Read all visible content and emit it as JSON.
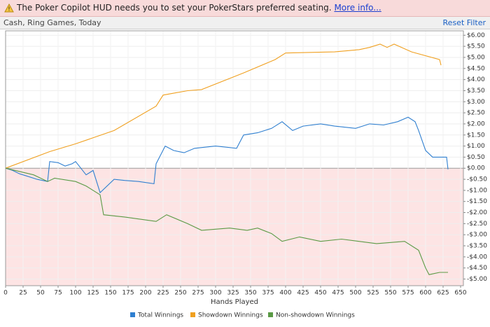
{
  "banner": {
    "text": "The Poker Copilot HUD needs you to set your PokerStars preferred seating.",
    "link": "More info..."
  },
  "toolbar": {
    "filter": "Cash, Ring Games, Today",
    "reset": "Reset Filter"
  },
  "chart_data": {
    "type": "line",
    "xlabel": "Hands Played",
    "xlim": [
      0,
      654
    ],
    "xticks": [
      0,
      25,
      50,
      75,
      100,
      125,
      150,
      175,
      200,
      225,
      250,
      275,
      300,
      325,
      350,
      375,
      400,
      425,
      450,
      475,
      500,
      525,
      550,
      575,
      600,
      625,
      650
    ],
    "ylim": [
      -5.3,
      6.2
    ],
    "yticks": [
      {
        "value": 6,
        "label": "$6.00"
      },
      {
        "value": 5.5,
        "label": "$5.50"
      },
      {
        "value": 5,
        "label": "$5.00"
      },
      {
        "value": 4.5,
        "label": "$4.50"
      },
      {
        "value": 4,
        "label": "$4.00"
      },
      {
        "value": 3.5,
        "label": "$3.50"
      },
      {
        "value": 3,
        "label": "$3.00"
      },
      {
        "value": 2.5,
        "label": "$2.50"
      },
      {
        "value": 2,
        "label": "$2.00"
      },
      {
        "value": 1.5,
        "label": "$1.50"
      },
      {
        "value": 1,
        "label": "$1.00"
      },
      {
        "value": 0.5,
        "label": "$0.50"
      },
      {
        "value": 0,
        "label": "$0.00"
      },
      {
        "value": -0.5,
        "label": "-$0.50"
      },
      {
        "value": -1,
        "label": "-$1.00"
      },
      {
        "value": -1.5,
        "label": "-$1.50"
      },
      {
        "value": -2,
        "label": "-$2.00"
      },
      {
        "value": -2.5,
        "label": "-$2.50"
      },
      {
        "value": -3,
        "label": "-$3.00"
      },
      {
        "value": -3.5,
        "label": "-$3.50"
      },
      {
        "value": -4,
        "label": "-$4.00"
      },
      {
        "value": -4.5,
        "label": "-$4.50"
      },
      {
        "value": -5,
        "label": "-$5.00"
      }
    ],
    "grid": true,
    "negative_fill": "#fde4e4",
    "series": [
      {
        "name": "Total Winnings",
        "color": "#2f7fd0",
        "x": [
          0,
          10,
          20,
          30,
          45,
          60,
          63,
          75,
          85,
          95,
          100,
          115,
          125,
          135,
          155,
          170,
          190,
          212,
          215,
          228,
          240,
          255,
          270,
          300,
          330,
          340,
          360,
          380,
          395,
          410,
          425,
          450,
          470,
          500,
          520,
          540,
          560,
          575,
          585,
          590,
          600,
          610,
          630,
          632
        ],
        "values": [
          0,
          -0.1,
          -0.25,
          -0.35,
          -0.5,
          -0.6,
          0.3,
          0.25,
          0.1,
          0.2,
          0.3,
          -0.3,
          -0.1,
          -1.1,
          -0.5,
          -0.55,
          -0.6,
          -0.7,
          0.2,
          1.0,
          0.8,
          0.7,
          0.9,
          1.0,
          0.9,
          1.5,
          1.6,
          1.8,
          2.1,
          1.7,
          1.9,
          2.0,
          1.9,
          1.8,
          2.0,
          1.95,
          2.1,
          2.3,
          2.1,
          1.7,
          0.8,
          0.5,
          0.5,
          -0.05
        ]
      },
      {
        "name": "Showdown Winnings",
        "color": "#f0a020",
        "x": [
          0,
          63,
          100,
          155,
          215,
          225,
          260,
          280,
          340,
          385,
          400,
          470,
          505,
          520,
          535,
          545,
          555,
          580,
          620,
          622
        ],
        "values": [
          0,
          0.75,
          1.1,
          1.7,
          2.8,
          3.3,
          3.5,
          3.55,
          4.3,
          4.9,
          5.2,
          5.25,
          5.35,
          5.45,
          5.6,
          5.45,
          5.6,
          5.25,
          4.9,
          4.65
        ]
      },
      {
        "name": "Non-showdown Winnings",
        "color": "#5a9a45",
        "x": [
          0,
          40,
          60,
          70,
          100,
          115,
          135,
          140,
          170,
          215,
          230,
          260,
          280,
          320,
          345,
          360,
          380,
          395,
          420,
          450,
          480,
          530,
          570,
          590,
          600,
          605,
          620,
          632
        ],
        "values": [
          0,
          -0.3,
          -0.6,
          -0.45,
          -0.6,
          -0.8,
          -1.2,
          -2.1,
          -2.2,
          -2.4,
          -2.1,
          -2.5,
          -2.8,
          -2.7,
          -2.8,
          -2.7,
          -2.95,
          -3.3,
          -3.1,
          -3.3,
          -3.2,
          -3.4,
          -3.3,
          -3.7,
          -4.5,
          -4.8,
          -4.7,
          -4.7
        ]
      }
    ]
  }
}
